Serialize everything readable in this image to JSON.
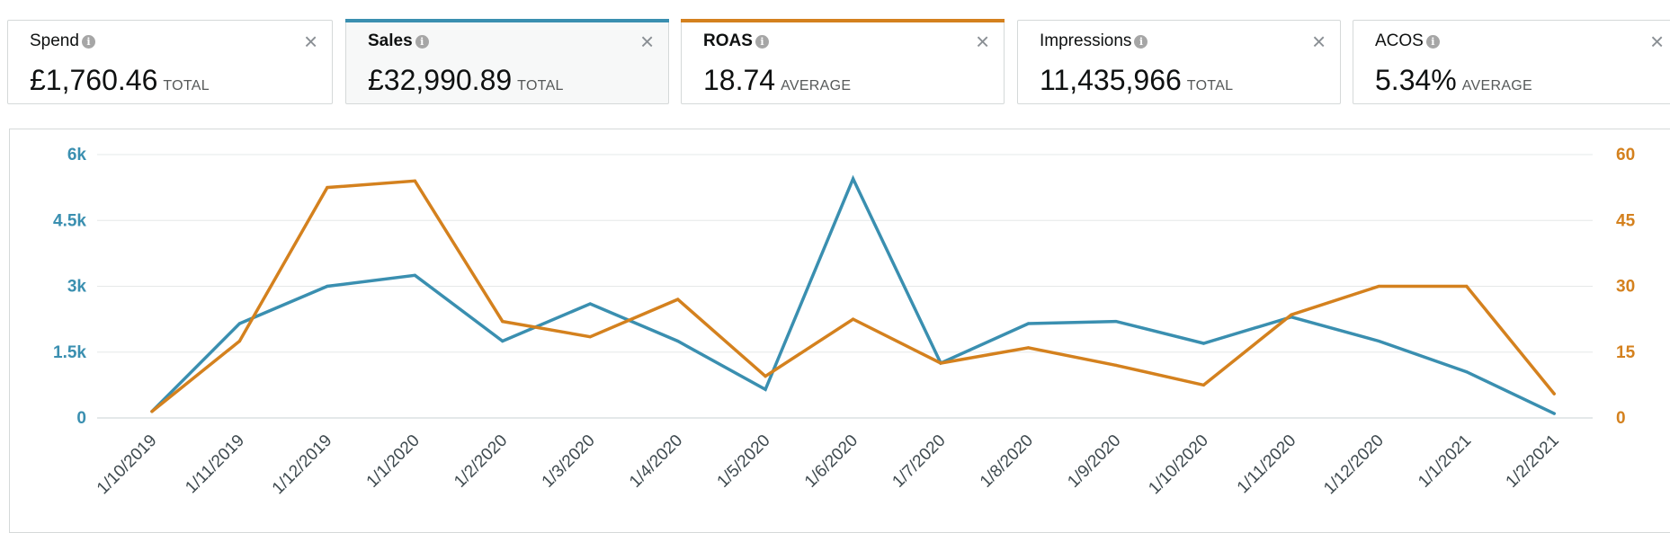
{
  "metrics": [
    {
      "title": "Spend",
      "value": "£1,760.46",
      "suffix": "TOTAL"
    },
    {
      "title": "Sales",
      "value": "£32,990.89",
      "suffix": "TOTAL"
    },
    {
      "title": "ROAS",
      "value": "18.74",
      "suffix": "AVERAGE"
    },
    {
      "title": "Impressions",
      "value": "11,435,966",
      "suffix": "TOTAL"
    },
    {
      "title": "ACOS",
      "value": "5.34%",
      "suffix": "AVERAGE"
    }
  ],
  "icons": {
    "info": "info-icon",
    "close": "close-icon"
  },
  "colors": {
    "sales": "#3a8fb0",
    "roas": "#d4811e",
    "border": "#d5d9d9",
    "grid": "#e6e8e8"
  },
  "chart_data": {
    "type": "line",
    "categories": [
      "1/10/2019",
      "1/11/2019",
      "1/12/2019",
      "1/1/2020",
      "1/2/2020",
      "1/3/2020",
      "1/4/2020",
      "1/5/2020",
      "1/6/2020",
      "1/7/2020",
      "1/8/2020",
      "1/9/2020",
      "1/10/2020",
      "1/11/2020",
      "1/12/2020",
      "1/1/2021",
      "1/2/2021"
    ],
    "left_axis": {
      "ticks": [
        0,
        1500,
        3000,
        4500,
        6000
      ],
      "tick_labels": [
        "0",
        "1.5k",
        "3k",
        "4.5k",
        "6k"
      ],
      "ylim": [
        0,
        6000
      ]
    },
    "right_axis": {
      "ticks": [
        0,
        15,
        30,
        45,
        60
      ],
      "tick_labels": [
        "0",
        "15",
        "30",
        "45",
        "60"
      ],
      "ylim": [
        0,
        60
      ]
    },
    "series": [
      {
        "name": "Sales",
        "axis": "left",
        "color": "#3a8fb0",
        "values": [
          150,
          2150,
          3000,
          3250,
          1750,
          2600,
          1750,
          650,
          5450,
          1250,
          2150,
          2200,
          1700,
          2300,
          1750,
          1050,
          100
        ]
      },
      {
        "name": "ROAS",
        "axis": "right",
        "color": "#d4811e",
        "values": [
          1.5,
          17.5,
          52.5,
          54,
          22,
          18.5,
          27,
          9.5,
          22.5,
          12.5,
          16,
          12,
          7.5,
          23.5,
          30,
          30,
          5.5
        ]
      }
    ],
    "grid": true,
    "legend": "none"
  }
}
